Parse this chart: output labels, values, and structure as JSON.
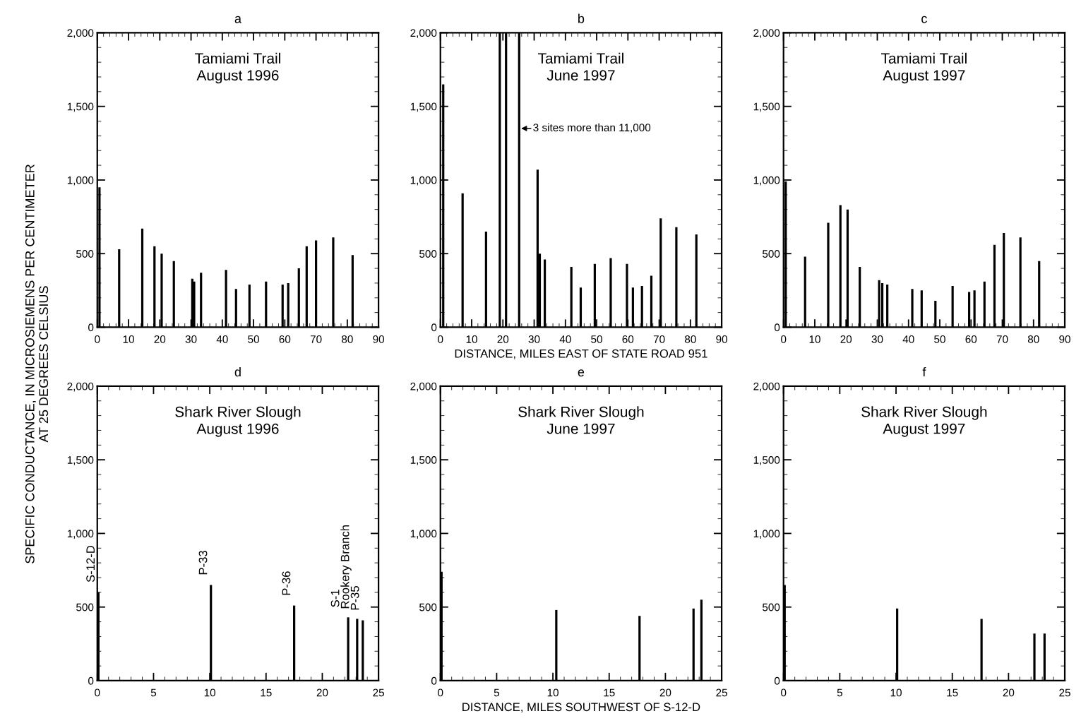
{
  "chart_data": [
    {
      "type": "bar",
      "title": "a",
      "ylabel": "SPECIFIC CONDUCTANCE, IN MICROSIEMENS PER CENTIMETER\nAT 25 DEGREES CELSIUS",
      "color": "#000000",
      "x": [
        0.7,
        7,
        14.4,
        18.3,
        20.6,
        24.5,
        30.4,
        31,
        33.2,
        41.2,
        44.4,
        48.7,
        54,
        59.3,
        61.1,
        64.5,
        67,
        70,
        75.5,
        81.7
      ],
      "values": [
        950,
        530,
        670,
        550,
        500,
        450,
        330,
        310,
        370,
        390,
        260,
        290,
        310,
        290,
        300,
        400,
        550,
        590,
        610,
        490
      ],
      "xlim": [
        0,
        90
      ],
      "xticks": [
        0,
        10,
        20,
        30,
        40,
        50,
        60,
        70,
        80,
        90
      ],
      "ylim": [
        0,
        2000
      ],
      "yticks": [
        {
          "value": 0,
          "label": "0"
        },
        {
          "value": 500,
          "label": "500"
        },
        {
          "value": 1000,
          "label": "1,000"
        },
        {
          "value": 1500,
          "label": "1,500"
        },
        {
          "value": 2000,
          "label": "2,000"
        }
      ],
      "annotations": [
        "Tamiami Trail\nAugust 1996"
      ]
    },
    {
      "type": "bar",
      "title": "b",
      "xlabel": "DISTANCE, MILES EAST OF STATE ROAD 951",
      "color": "#000000",
      "x": [
        0.9,
        7.1,
        14.6,
        19,
        21,
        25.2,
        31.1,
        31.8,
        33.4,
        41.9,
        44.9,
        49.4,
        54.5,
        59.7,
        61.6,
        64.5,
        67.5,
        70.5,
        75.5,
        81.9
      ],
      "values": [
        1650,
        910,
        650,
        2000,
        2000,
        2000,
        1070,
        500,
        460,
        410,
        270,
        430,
        470,
        430,
        270,
        280,
        350,
        740,
        680,
        630
      ],
      "xlim": [
        0,
        90
      ],
      "xticks": [
        0,
        10,
        20,
        30,
        40,
        50,
        60,
        70,
        80,
        90
      ],
      "ylim": [
        0,
        2000
      ],
      "yticks": [
        {
          "value": 0,
          "label": "0"
        },
        {
          "value": 500,
          "label": "500"
        },
        {
          "value": 1000,
          "label": "1,000"
        },
        {
          "value": 1500,
          "label": "1,500"
        },
        {
          "value": 2000,
          "label": "2,000"
        }
      ],
      "annotations": [
        "Tamiami Trail\nJune 1997",
        {
          "text": "3 sites more than 11,000",
          "x": 25.2,
          "y": 1350
        }
      ]
    },
    {
      "type": "bar",
      "title": "c",
      "color": "#000000",
      "x": [
        0.7,
        6.9,
        14.3,
        18.2,
        20.5,
        24.4,
        30.6,
        31.6,
        33.2,
        41.2,
        44.2,
        48.6,
        54.1,
        59.4,
        61.1,
        64.3,
        67.5,
        70.5,
        75.8,
        81.8
      ],
      "values": [
        990,
        480,
        710,
        830,
        800,
        410,
        320,
        300,
        290,
        260,
        250,
        180,
        280,
        240,
        250,
        310,
        560,
        640,
        610,
        450
      ],
      "xlim": [
        0,
        90
      ],
      "xticks": [
        0,
        10,
        20,
        30,
        40,
        50,
        60,
        70,
        80,
        90
      ],
      "ylim": [
        0,
        2000
      ],
      "yticks": [
        {
          "value": 0,
          "label": "0"
        },
        {
          "value": 500,
          "label": "500"
        },
        {
          "value": 1000,
          "label": "1,000"
        },
        {
          "value": 1500,
          "label": "1,500"
        },
        {
          "value": 2000,
          "label": "2,000"
        }
      ],
      "annotations": [
        "Tamiami Trail\nAugust 1997"
      ]
    },
    {
      "type": "bar",
      "title": "d",
      "color": "#000000",
      "x": [
        0.1,
        10.1,
        17.5,
        22.3,
        23.1,
        23.6
      ],
      "values": [
        600,
        650,
        510,
        430,
        420,
        410
      ],
      "xlim": [
        0,
        25
      ],
      "xticks": [
        0,
        5,
        10,
        15,
        20,
        25
      ],
      "ylim": [
        0,
        2000
      ],
      "yticks": [
        {
          "value": 0,
          "label": "0"
        },
        {
          "value": 500,
          "label": "500"
        },
        {
          "value": 1000,
          "label": "1,000"
        },
        {
          "value": 1500,
          "label": "1,500"
        },
        {
          "value": 2000,
          "label": "2,000"
        }
      ],
      "annotations": [
        "Shark River Slough\nAugust 1996",
        {
          "text": "S-12-D",
          "x": 0.1,
          "y": 600
        },
        {
          "text": "P-33",
          "x": 10.1,
          "y": 650
        },
        {
          "text": "P-36",
          "x": 17.5,
          "y": 510
        },
        {
          "text": "S-1",
          "x": 22.3,
          "y": 430
        },
        {
          "text": "Rookery Branch",
          "x": 23.1,
          "y": 420
        },
        {
          "text": "P-35",
          "x": 23.6,
          "y": 410
        }
      ]
    },
    {
      "type": "bar",
      "title": "e",
      "xlabel": "DISTANCE, MILES SOUTHWEST OF S-12-D",
      "color": "#000000",
      "x": [
        0.1,
        10.3,
        17.7,
        22.5,
        23.2
      ],
      "values": [
        740,
        480,
        440,
        490,
        550
      ],
      "xlim": [
        0,
        25
      ],
      "xticks": [
        0,
        5,
        10,
        15,
        20,
        25
      ],
      "ylim": [
        0,
        2000
      ],
      "yticks": [
        {
          "value": 0,
          "label": "0"
        },
        {
          "value": 500,
          "label": "500"
        },
        {
          "value": 1000,
          "label": "1,000"
        },
        {
          "value": 1500,
          "label": "1,500"
        },
        {
          "value": 2000,
          "label": "2,000"
        }
      ],
      "annotations": [
        "Shark River Slough\nJune 1997"
      ]
    },
    {
      "type": "bar",
      "title": "f",
      "color": "#000000",
      "x": [
        0.1,
        10.1,
        17.6,
        22.3,
        23.2
      ],
      "values": [
        650,
        490,
        420,
        320,
        320
      ],
      "xlim": [
        0,
        25
      ],
      "xticks": [
        0,
        5,
        10,
        15,
        20,
        25
      ],
      "ylim": [
        0,
        2000
      ],
      "yticks": [
        {
          "value": 0,
          "label": "0"
        },
        {
          "value": 500,
          "label": "500"
        },
        {
          "value": 1000,
          "label": "1,000"
        },
        {
          "value": 1500,
          "label": "1,500"
        },
        {
          "value": 2000,
          "label": "2,000"
        }
      ],
      "annotations": [
        "Shark River Slough\nAugust 1997"
      ]
    }
  ]
}
